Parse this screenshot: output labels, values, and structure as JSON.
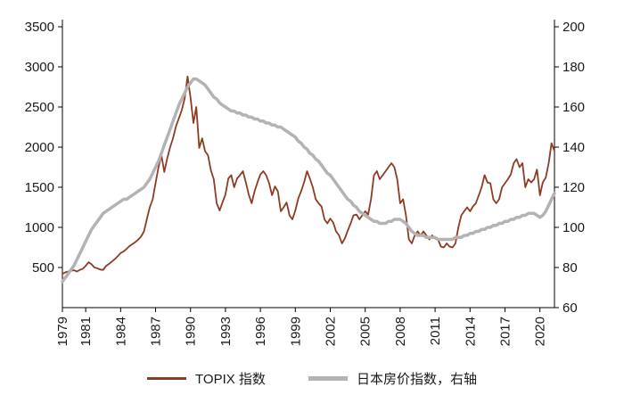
{
  "legend": {
    "items": [
      {
        "label": "TOPIX 指数",
        "color": "#8e3b22",
        "thickness": 3
      },
      {
        "label": "日本房价指数，右轴",
        "color": "#b3b3b3",
        "thickness": 5
      }
    ]
  },
  "chart_data": {
    "type": "line",
    "title": "",
    "x_start": 1979.0,
    "x_step": 0.25,
    "x_ticks": [
      1979,
      1981,
      1984,
      1987,
      1990,
      1993,
      1996,
      1999,
      2002,
      2005,
      2008,
      2011,
      2014,
      2017,
      2020
    ],
    "ylim_left": [
      0,
      3500
    ],
    "yticks_left": [
      500,
      1000,
      1500,
      2000,
      2500,
      3000,
      3500
    ],
    "ylim_right": [
      60,
      200
    ],
    "yticks_right": [
      60,
      80,
      100,
      120,
      140,
      160,
      180,
      200
    ],
    "grid": false,
    "legend_position": "bottom",
    "series": [
      {
        "name": "TOPIX 指数",
        "axis": "left",
        "color": "#8e3b22",
        "width": 1.8,
        "values": [
          420,
          440,
          450,
          460,
          465,
          450,
          470,
          485,
          520,
          565,
          540,
          500,
          490,
          475,
          470,
          520,
          545,
          575,
          605,
          640,
          680,
          700,
          730,
          765,
          790,
          815,
          845,
          885,
          950,
          1100,
          1250,
          1350,
          1550,
          1750,
          1900,
          1690,
          1860,
          2000,
          2110,
          2260,
          2360,
          2460,
          2610,
          2880,
          2620,
          2300,
          2500,
          1990,
          2110,
          1950,
          1900,
          1710,
          1600,
          1300,
          1210,
          1310,
          1410,
          1610,
          1650,
          1500,
          1610,
          1650,
          1700,
          1560,
          1410,
          1300,
          1450,
          1560,
          1660,
          1700,
          1650,
          1550,
          1400,
          1510,
          1450,
          1200,
          1250,
          1310,
          1150,
          1100,
          1210,
          1360,
          1450,
          1560,
          1700,
          1610,
          1500,
          1350,
          1300,
          1260,
          1100,
          1050,
          1110,
          1060,
          950,
          900,
          800,
          860,
          960,
          1050,
          1150,
          1160,
          1100,
          1150,
          1200,
          1160,
          1350,
          1650,
          1700,
          1600,
          1650,
          1700,
          1750,
          1800,
          1750,
          1600,
          1300,
          1350,
          1150,
          850,
          800,
          900,
          950,
          900,
          950,
          900,
          850,
          900,
          860,
          850,
          760,
          750,
          800,
          760,
          750,
          800,
          1000,
          1150,
          1200,
          1250,
          1200,
          1260,
          1300,
          1400,
          1500,
          1650,
          1560,
          1550,
          1350,
          1300,
          1350,
          1500,
          1550,
          1600,
          1660,
          1800,
          1850,
          1750,
          1800,
          1500,
          1600,
          1560,
          1600,
          1720,
          1400,
          1560,
          1620,
          1800,
          2050,
          1950
        ]
      },
      {
        "name": "日本房价指数，右轴",
        "axis": "right",
        "color": "#b3b3b3",
        "width": 3.5,
        "values": [
          73,
          75,
          77,
          79,
          81,
          84,
          87,
          90,
          93,
          96,
          99,
          101,
          103,
          105,
          107,
          108,
          109,
          110,
          111,
          112,
          113,
          114,
          114,
          115,
          116,
          117,
          118,
          119,
          120,
          122,
          124,
          127,
          130,
          133,
          137,
          141,
          145,
          149,
          153,
          157,
          161,
          164,
          167,
          170,
          172,
          174,
          174,
          173,
          172,
          171,
          169,
          167,
          165,
          164,
          162,
          161,
          160,
          159,
          158,
          158,
          157,
          157,
          156,
          156,
          155,
          155,
          154,
          154,
          153,
          153,
          152,
          152,
          151,
          151,
          150,
          150,
          149,
          148,
          147,
          146,
          145,
          143,
          142,
          140,
          139,
          137,
          136,
          134,
          133,
          131,
          129,
          127,
          126,
          124,
          122,
          120,
          118,
          116,
          114,
          113,
          111,
          110,
          108,
          107,
          106,
          105,
          104,
          103,
          103,
          102,
          102,
          102,
          103,
          103,
          104,
          104,
          104,
          103,
          102,
          100,
          98,
          97,
          96,
          96,
          96,
          95,
          95,
          95,
          95,
          94,
          94,
          94,
          94,
          94,
          94,
          95,
          95,
          95,
          96,
          96,
          97,
          97,
          98,
          98,
          99,
          99,
          100,
          100,
          101,
          101,
          102,
          102,
          103,
          103,
          104,
          104,
          105,
          105,
          106,
          106,
          107,
          107,
          107,
          106,
          105,
          106,
          108,
          111,
          114,
          117
        ]
      }
    ]
  }
}
